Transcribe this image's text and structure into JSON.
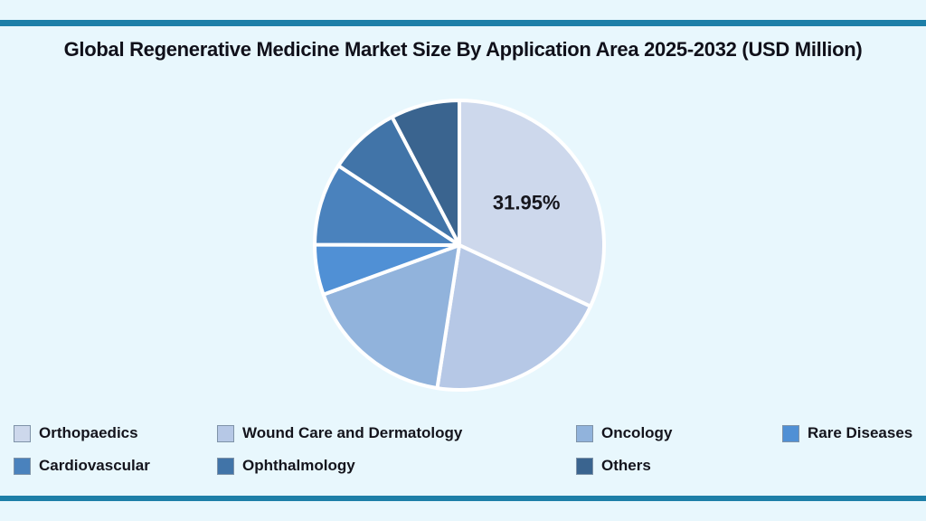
{
  "header": {
    "title": "Global Regenerative Medicine Market Size By Application Area 2025-2032 (USD Million)"
  },
  "theme": {
    "background": "#e8f7fd",
    "divider_color": "#1d7fa8",
    "title_color": "#10101a",
    "legend_text_color": "#14141c",
    "slice_border_color": "#ffffff",
    "swatch_border_color": "#7f93a8"
  },
  "chart_data": {
    "type": "pie",
    "title": "Global Regenerative Medicine Market Size By Application Area 2025-2032 (USD Million)",
    "unit": "percent share",
    "start_angle_deg": 0,
    "direction": "clockwise",
    "legend_position": "bottom",
    "labels": [
      "Orthopaedics",
      "Wound Care and Dermatology",
      "Oncology",
      "Rare Diseases",
      "Cardiovascular",
      "Ophthalmology",
      "Others"
    ],
    "values_percent": [
      31.95,
      20.5,
      17.0,
      5.6,
      9.2,
      8.05,
      7.7
    ],
    "colors": [
      "#cdd8ec",
      "#b6c8e6",
      "#91b3dc",
      "#5090d5",
      "#4a82bd",
      "#4174a8",
      "#3a648f"
    ],
    "data_labels": [
      "31.95%",
      "",
      "",
      "",
      "",
      "",
      ""
    ]
  }
}
